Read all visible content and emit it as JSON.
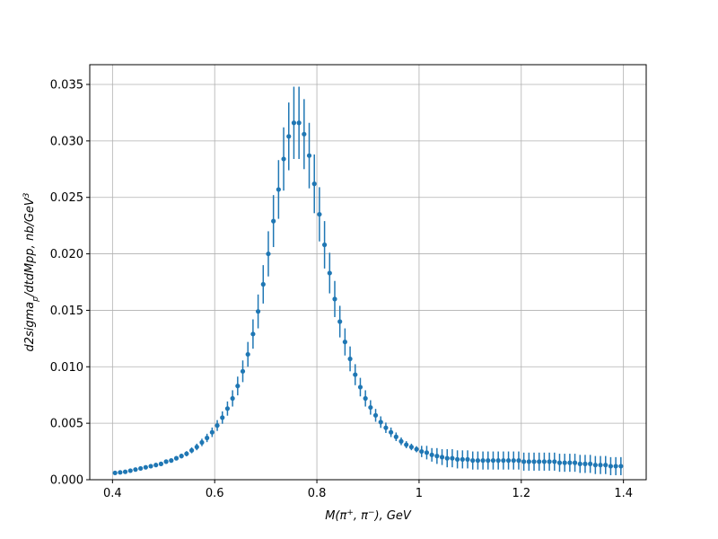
{
  "chart_data": {
    "type": "errorbar",
    "xlabel": [
      {
        "text": "M(π",
        "shift": "none"
      },
      {
        "text": "+",
        "shift": "sup"
      },
      {
        "text": ", π",
        "shift": "none"
      },
      {
        "text": "−",
        "shift": "sup"
      },
      {
        "text": "), GeV",
        "shift": "none"
      }
    ],
    "ylabel": [
      {
        "text": "d2sigma",
        "shift": "none"
      },
      {
        "text": "p",
        "shift": "sub"
      },
      {
        "text": "/dtdMpp, nb/GeV",
        "shift": "none"
      },
      {
        "text": "3",
        "shift": "sup"
      }
    ],
    "color": "#1f77b4",
    "grid": true,
    "xlim": [
      0.3555,
      1.4445
    ],
    "xticks": [
      0.4,
      0.6,
      0.8,
      1.0,
      1.2,
      1.4
    ],
    "ylim": [
      0,
      0.03675
    ],
    "yticks": [
      {
        "value": 0,
        "label": "0.000"
      },
      {
        "value": 0.005,
        "label": "0.005"
      },
      {
        "value": 0.01,
        "label": "0.010"
      },
      {
        "value": 0.015,
        "label": "0.015"
      },
      {
        "value": 0.02,
        "label": "0.020"
      },
      {
        "value": 0.025,
        "label": "0.025"
      },
      {
        "value": 0.03,
        "label": "0.030"
      },
      {
        "value": 0.035,
        "label": "0.035"
      }
    ],
    "x": [
      0.405,
      0.415,
      0.425,
      0.435,
      0.445,
      0.455,
      0.465,
      0.475,
      0.485,
      0.495,
      0.505,
      0.515,
      0.525,
      0.535,
      0.545,
      0.555,
      0.565,
      0.575,
      0.585,
      0.595,
      0.605,
      0.615,
      0.625,
      0.635,
      0.645,
      0.655,
      0.665,
      0.675,
      0.685,
      0.695,
      0.705,
      0.715,
      0.725,
      0.735,
      0.745,
      0.755,
      0.765,
      0.775,
      0.785,
      0.795,
      0.805,
      0.815,
      0.825,
      0.835,
      0.845,
      0.855,
      0.865,
      0.875,
      0.885,
      0.895,
      0.905,
      0.915,
      0.925,
      0.935,
      0.945,
      0.955,
      0.965,
      0.975,
      0.985,
      0.995,
      1.005,
      1.015,
      1.025,
      1.035,
      1.045,
      1.055,
      1.065,
      1.075,
      1.085,
      1.095,
      1.105,
      1.115,
      1.125,
      1.135,
      1.145,
      1.155,
      1.165,
      1.175,
      1.185,
      1.195,
      1.205,
      1.215,
      1.225,
      1.235,
      1.245,
      1.255,
      1.265,
      1.275,
      1.285,
      1.295,
      1.305,
      1.315,
      1.325,
      1.335,
      1.345,
      1.355,
      1.365,
      1.375,
      1.385,
      1.395
    ],
    "values": [
      0.0006,
      0.00065,
      0.0007,
      0.0008,
      0.0009,
      0.001,
      0.0011,
      0.0012,
      0.0013,
      0.0014,
      0.0016,
      0.0017,
      0.0019,
      0.0021,
      0.0023,
      0.0026,
      0.0029,
      0.0033,
      0.0037,
      0.0042,
      0.0048,
      0.0055,
      0.0063,
      0.0072,
      0.0083,
      0.0096,
      0.0111,
      0.0129,
      0.0149,
      0.0173,
      0.02,
      0.0229,
      0.0257,
      0.0284,
      0.0304,
      0.0316,
      0.0316,
      0.0306,
      0.0287,
      0.0262,
      0.0235,
      0.0208,
      0.0183,
      0.016,
      0.014,
      0.0122,
      0.0107,
      0.0093,
      0.0082,
      0.0072,
      0.0064,
      0.0057,
      0.0051,
      0.0046,
      0.0042,
      0.0038,
      0.0034,
      0.0031,
      0.0029,
      0.0027,
      0.0025,
      0.0024,
      0.0022,
      0.0021,
      0.002,
      0.0019,
      0.0019,
      0.0018,
      0.0018,
      0.0018,
      0.0017,
      0.0017,
      0.0017,
      0.0017,
      0.0017,
      0.0017,
      0.0017,
      0.0017,
      0.0017,
      0.0017,
      0.0016,
      0.0016,
      0.0016,
      0.0016,
      0.0016,
      0.0016,
      0.0016,
      0.0015,
      0.0015,
      0.0015,
      0.0015,
      0.0014,
      0.0014,
      0.0014,
      0.0013,
      0.0013,
      0.0013,
      0.0012,
      0.0012,
      0.0012
    ],
    "errors": [
      6e-05,
      7e-05,
      7e-05,
      8e-05,
      9e-05,
      0.0001,
      0.00011,
      0.00012,
      0.00013,
      0.00014,
      0.00016,
      0.00017,
      0.00019,
      0.00021,
      0.00023,
      0.00026,
      0.00029,
      0.00033,
      0.00037,
      0.00042,
      0.00048,
      0.00055,
      0.00063,
      0.00072,
      0.00083,
      0.00096,
      0.0011,
      0.0013,
      0.0015,
      0.0017,
      0.002,
      0.0023,
      0.0026,
      0.0028,
      0.003,
      0.0032,
      0.0032,
      0.0031,
      0.0029,
      0.0026,
      0.0024,
      0.0021,
      0.0018,
      0.0016,
      0.0014,
      0.0012,
      0.0011,
      0.00093,
      0.00082,
      0.00072,
      0.00064,
      0.00057,
      0.00051,
      0.00046,
      0.00042,
      0.00038,
      0.00034,
      0.00031,
      0.00029,
      0.00027,
      0.0005,
      0.0006,
      0.0006,
      0.0007,
      0.0007,
      0.0008,
      0.0008,
      0.0008,
      0.0008,
      0.0008,
      0.0008,
      0.0008,
      0.0008,
      0.0008,
      0.0008,
      0.0008,
      0.0008,
      0.0008,
      0.0008,
      0.0008,
      0.0008,
      0.0008,
      0.0008,
      0.0008,
      0.0008,
      0.0008,
      0.0008,
      0.0008,
      0.0008,
      0.0008,
      0.0008,
      0.0008,
      0.0008,
      0.0008,
      0.0008,
      0.0008,
      0.0008,
      0.0008,
      0.0008,
      0.0008
    ]
  }
}
